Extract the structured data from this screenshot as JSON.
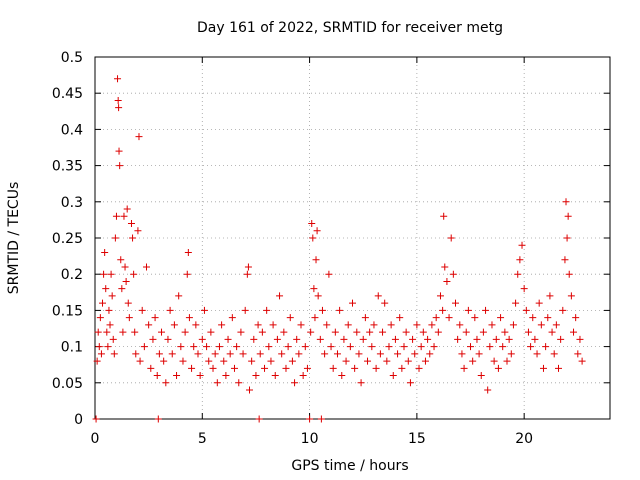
{
  "chart_data": {
    "type": "scatter",
    "title": "Day 161 of 2022, SRMTID for receiver metg",
    "xlabel": "GPS time / hours",
    "ylabel": "SRMTID / TECUs",
    "xlim": [
      0,
      24
    ],
    "ylim": [
      0,
      0.5
    ],
    "x_ticks": [
      0,
      5,
      10,
      15,
      20
    ],
    "x_tick_labels": [
      "0",
      "5",
      "10",
      "15",
      "20"
    ],
    "y_ticks": [
      0,
      0.05,
      0.1,
      0.15,
      0.2,
      0.25,
      0.3,
      0.35,
      0.4,
      0.45,
      0.5
    ],
    "y_tick_labels": [
      "0",
      "0.05",
      "0.1",
      "0.15",
      "0.2",
      "0.25",
      "0.3",
      "0.35",
      "0.4",
      "0.45",
      "0.5"
    ],
    "grid": true,
    "marker": "+",
    "marker_color": "#dd0000",
    "series": [
      {
        "name": "SRMTID",
        "points": [
          [
            0.05,
            0.0
          ],
          [
            0.1,
            0.08
          ],
          [
            0.15,
            0.12
          ],
          [
            0.2,
            0.1
          ],
          [
            0.25,
            0.14
          ],
          [
            0.3,
            0.09
          ],
          [
            0.35,
            0.16
          ],
          [
            0.4,
            0.2
          ],
          [
            0.45,
            0.23
          ],
          [
            0.5,
            0.18
          ],
          [
            0.55,
            0.12
          ],
          [
            0.6,
            0.1
          ],
          [
            0.65,
            0.15
          ],
          [
            0.7,
            0.13
          ],
          [
            0.75,
            0.2
          ],
          [
            0.8,
            0.17
          ],
          [
            0.85,
            0.11
          ],
          [
            0.9,
            0.09
          ],
          [
            0.95,
            0.25
          ],
          [
            1.0,
            0.28
          ],
          [
            1.05,
            0.47
          ],
          [
            1.08,
            0.44
          ],
          [
            1.1,
            0.43
          ],
          [
            1.12,
            0.37
          ],
          [
            1.15,
            0.35
          ],
          [
            1.2,
            0.22
          ],
          [
            1.25,
            0.18
          ],
          [
            1.3,
            0.12
          ],
          [
            1.35,
            0.28
          ],
          [
            1.4,
            0.21
          ],
          [
            1.45,
            0.19
          ],
          [
            1.5,
            0.29
          ],
          [
            1.55,
            0.16
          ],
          [
            1.6,
            0.14
          ],
          [
            1.7,
            0.27
          ],
          [
            1.75,
            0.25
          ],
          [
            1.8,
            0.2
          ],
          [
            1.85,
            0.12
          ],
          [
            1.9,
            0.09
          ],
          [
            2.0,
            0.26
          ],
          [
            2.05,
            0.39
          ],
          [
            2.1,
            0.08
          ],
          [
            2.2,
            0.15
          ],
          [
            2.3,
            0.1
          ],
          [
            2.4,
            0.21
          ],
          [
            2.5,
            0.13
          ],
          [
            2.6,
            0.07
          ],
          [
            2.7,
            0.11
          ],
          [
            2.8,
            0.14
          ],
          [
            2.9,
            0.06
          ],
          [
            2.95,
            0.0
          ],
          [
            3.0,
            0.09
          ],
          [
            3.1,
            0.12
          ],
          [
            3.2,
            0.08
          ],
          [
            3.3,
            0.05
          ],
          [
            3.4,
            0.11
          ],
          [
            3.5,
            0.15
          ],
          [
            3.6,
            0.09
          ],
          [
            3.7,
            0.13
          ],
          [
            3.8,
            0.06
          ],
          [
            3.9,
            0.17
          ],
          [
            4.0,
            0.1
          ],
          [
            4.1,
            0.08
          ],
          [
            4.2,
            0.12
          ],
          [
            4.3,
            0.2
          ],
          [
            4.35,
            0.23
          ],
          [
            4.4,
            0.14
          ],
          [
            4.5,
            0.07
          ],
          [
            4.6,
            0.1
          ],
          [
            4.7,
            0.13
          ],
          [
            4.8,
            0.09
          ],
          [
            4.9,
            0.06
          ],
          [
            5.0,
            0.11
          ],
          [
            5.1,
            0.15
          ],
          [
            5.2,
            0.1
          ],
          [
            5.3,
            0.08
          ],
          [
            5.4,
            0.12
          ],
          [
            5.5,
            0.07
          ],
          [
            5.6,
            0.09
          ],
          [
            5.7,
            0.05
          ],
          [
            5.8,
            0.1
          ],
          [
            5.9,
            0.13
          ],
          [
            6.0,
            0.08
          ],
          [
            6.1,
            0.06
          ],
          [
            6.2,
            0.11
          ],
          [
            6.3,
            0.09
          ],
          [
            6.4,
            0.14
          ],
          [
            6.5,
            0.07
          ],
          [
            6.6,
            0.1
          ],
          [
            6.7,
            0.05
          ],
          [
            6.8,
            0.12
          ],
          [
            6.9,
            0.09
          ],
          [
            7.0,
            0.15
          ],
          [
            7.1,
            0.2
          ],
          [
            7.15,
            0.21
          ],
          [
            7.2,
            0.04
          ],
          [
            7.3,
            0.08
          ],
          [
            7.4,
            0.11
          ],
          [
            7.5,
            0.06
          ],
          [
            7.6,
            0.13
          ],
          [
            7.65,
            0.0
          ],
          [
            7.7,
            0.09
          ],
          [
            7.8,
            0.12
          ],
          [
            7.9,
            0.07
          ],
          [
            8.0,
            0.15
          ],
          [
            8.1,
            0.1
          ],
          [
            8.2,
            0.08
          ],
          [
            8.3,
            0.13
          ],
          [
            8.4,
            0.06
          ],
          [
            8.5,
            0.11
          ],
          [
            8.6,
            0.17
          ],
          [
            8.7,
            0.09
          ],
          [
            8.8,
            0.12
          ],
          [
            8.9,
            0.07
          ],
          [
            9.0,
            0.1
          ],
          [
            9.1,
            0.14
          ],
          [
            9.2,
            0.08
          ],
          [
            9.3,
            0.05
          ],
          [
            9.4,
            0.11
          ],
          [
            9.5,
            0.09
          ],
          [
            9.6,
            0.13
          ],
          [
            9.7,
            0.06
          ],
          [
            9.8,
            0.1
          ],
          [
            9.9,
            0.07
          ],
          [
            10.0,
            0.0
          ],
          [
            10.05,
            0.12
          ],
          [
            10.1,
            0.27
          ],
          [
            10.15,
            0.25
          ],
          [
            10.2,
            0.18
          ],
          [
            10.25,
            0.14
          ],
          [
            10.3,
            0.22
          ],
          [
            10.35,
            0.26
          ],
          [
            10.4,
            0.17
          ],
          [
            10.5,
            0.11
          ],
          [
            10.55,
            0.0
          ],
          [
            10.6,
            0.15
          ],
          [
            10.7,
            0.09
          ],
          [
            10.8,
            0.13
          ],
          [
            10.9,
            0.2
          ],
          [
            11.0,
            0.1
          ],
          [
            11.1,
            0.07
          ],
          [
            11.2,
            0.12
          ],
          [
            11.3,
            0.09
          ],
          [
            11.4,
            0.15
          ],
          [
            11.5,
            0.06
          ],
          [
            11.6,
            0.11
          ],
          [
            11.7,
            0.08
          ],
          [
            11.8,
            0.13
          ],
          [
            11.9,
            0.1
          ],
          [
            12.0,
            0.16
          ],
          [
            12.1,
            0.07
          ],
          [
            12.2,
            0.12
          ],
          [
            12.3,
            0.09
          ],
          [
            12.4,
            0.05
          ],
          [
            12.5,
            0.11
          ],
          [
            12.6,
            0.14
          ],
          [
            12.7,
            0.08
          ],
          [
            12.8,
            0.12
          ],
          [
            12.9,
            0.1
          ],
          [
            13.0,
            0.13
          ],
          [
            13.1,
            0.07
          ],
          [
            13.2,
            0.17
          ],
          [
            13.3,
            0.09
          ],
          [
            13.4,
            0.12
          ],
          [
            13.5,
            0.16
          ],
          [
            13.6,
            0.08
          ],
          [
            13.7,
            0.1
          ],
          [
            13.8,
            0.13
          ],
          [
            13.9,
            0.06
          ],
          [
            14.0,
            0.11
          ],
          [
            14.1,
            0.09
          ],
          [
            14.2,
            0.14
          ],
          [
            14.3,
            0.07
          ],
          [
            14.4,
            0.1
          ],
          [
            14.5,
            0.12
          ],
          [
            14.6,
            0.08
          ],
          [
            14.7,
            0.05
          ],
          [
            14.8,
            0.11
          ],
          [
            14.9,
            0.09
          ],
          [
            15.0,
            0.13
          ],
          [
            15.1,
            0.07
          ],
          [
            15.2,
            0.1
          ],
          [
            15.3,
            0.12
          ],
          [
            15.4,
            0.08
          ],
          [
            15.5,
            0.11
          ],
          [
            15.6,
            0.09
          ],
          [
            15.7,
            0.13
          ],
          [
            15.8,
            0.1
          ],
          [
            15.9,
            0.14
          ],
          [
            16.0,
            0.12
          ],
          [
            16.1,
            0.17
          ],
          [
            16.2,
            0.15
          ],
          [
            16.25,
            0.28
          ],
          [
            16.3,
            0.21
          ],
          [
            16.4,
            0.19
          ],
          [
            16.5,
            0.14
          ],
          [
            16.6,
            0.25
          ],
          [
            16.7,
            0.2
          ],
          [
            16.8,
            0.16
          ],
          [
            16.9,
            0.11
          ],
          [
            17.0,
            0.13
          ],
          [
            17.1,
            0.09
          ],
          [
            17.2,
            0.07
          ],
          [
            17.3,
            0.12
          ],
          [
            17.4,
            0.15
          ],
          [
            17.5,
            0.1
          ],
          [
            17.6,
            0.08
          ],
          [
            17.7,
            0.14
          ],
          [
            17.8,
            0.11
          ],
          [
            17.9,
            0.09
          ],
          [
            18.0,
            0.06
          ],
          [
            18.1,
            0.12
          ],
          [
            18.2,
            0.15
          ],
          [
            18.3,
            0.04
          ],
          [
            18.4,
            0.1
          ],
          [
            18.5,
            0.13
          ],
          [
            18.6,
            0.08
          ],
          [
            18.7,
            0.11
          ],
          [
            18.8,
            0.07
          ],
          [
            18.9,
            0.14
          ],
          [
            19.0,
            0.1
          ],
          [
            19.1,
            0.12
          ],
          [
            19.2,
            0.08
          ],
          [
            19.3,
            0.11
          ],
          [
            19.4,
            0.09
          ],
          [
            19.5,
            0.13
          ],
          [
            19.6,
            0.16
          ],
          [
            19.7,
            0.2
          ],
          [
            19.8,
            0.22
          ],
          [
            19.9,
            0.24
          ],
          [
            20.0,
            0.18
          ],
          [
            20.1,
            0.15
          ],
          [
            20.2,
            0.12
          ],
          [
            20.3,
            0.1
          ],
          [
            20.4,
            0.14
          ],
          [
            20.5,
            0.11
          ],
          [
            20.6,
            0.09
          ],
          [
            20.7,
            0.16
          ],
          [
            20.8,
            0.13
          ],
          [
            20.9,
            0.07
          ],
          [
            21.0,
            0.1
          ],
          [
            21.1,
            0.14
          ],
          [
            21.2,
            0.17
          ],
          [
            21.3,
            0.12
          ],
          [
            21.4,
            0.09
          ],
          [
            21.5,
            0.13
          ],
          [
            21.6,
            0.07
          ],
          [
            21.7,
            0.11
          ],
          [
            21.8,
            0.15
          ],
          [
            21.9,
            0.22
          ],
          [
            21.95,
            0.3
          ],
          [
            22.0,
            0.25
          ],
          [
            22.05,
            0.28
          ],
          [
            22.1,
            0.2
          ],
          [
            22.2,
            0.17
          ],
          [
            22.3,
            0.12
          ],
          [
            22.4,
            0.14
          ],
          [
            22.5,
            0.09
          ],
          [
            22.6,
            0.11
          ],
          [
            22.7,
            0.08
          ]
        ]
      }
    ]
  }
}
